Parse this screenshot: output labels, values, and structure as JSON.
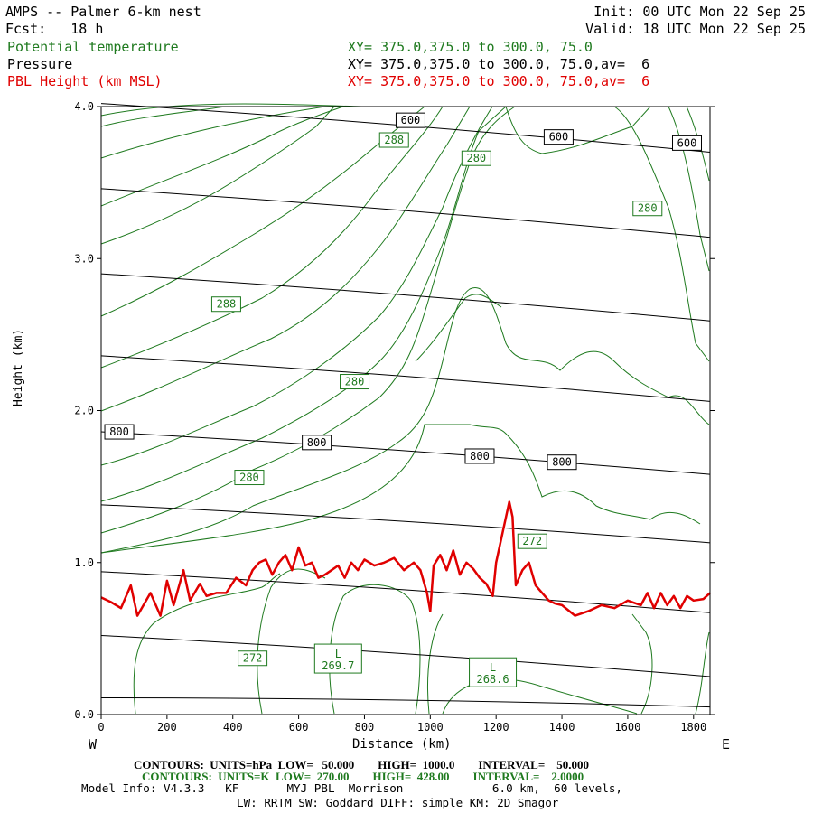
{
  "header": {
    "title": "AMPS -- Palmer 6-km nest",
    "fcst": "Fcst:   18 h",
    "init": "Init: 00 UTC Mon 22 Sep 25",
    "valid": "Valid: 18 UTC Mon 22 Sep 25",
    "layers": [
      {
        "name": "Potential temperature",
        "xy": "XY= 375.0,375.0 to 300.0, 75.0",
        "color": "#1f7a1f"
      },
      {
        "name": "Pressure",
        "xy": "XY= 375.0,375.0 to 300.0, 75.0,av=  6",
        "color": "#000000"
      },
      {
        "name": "PBL Height (km MSL)",
        "xy": "XY= 375.0,375.0 to 300.0, 75.0,av=  6",
        "color": "#e00000"
      }
    ]
  },
  "chart_data": {
    "type": "line",
    "xlabel": "Distance (km)",
    "ylabel": "Height (km)",
    "xlim": [
      0,
      1850
    ],
    "ylim": [
      0,
      4.0
    ],
    "x_ticks": [
      0,
      200,
      400,
      600,
      800,
      1000,
      1200,
      1400,
      1600,
      1800
    ],
    "y_ticks": [
      "0.0",
      "1.0",
      "2.0",
      "3.0",
      "4.0"
    ],
    "left_end_label": "W",
    "right_end_label": "E",
    "pressure_isobars_km": [
      {
        "hpa": null,
        "y": [
          0.11,
          0.05
        ]
      },
      {
        "hpa": null,
        "y": [
          0.52,
          0.25
        ]
      },
      {
        "hpa": null,
        "y": [
          0.94,
          0.67
        ]
      },
      {
        "hpa": null,
        "y": [
          1.38,
          1.13
        ]
      },
      {
        "hpa": 800,
        "y": [
          1.86,
          1.58
        ]
      },
      {
        "hpa": null,
        "y": [
          2.36,
          2.06
        ]
      },
      {
        "hpa": null,
        "y": [
          2.9,
          2.59
        ]
      },
      {
        "hpa": null,
        "y": [
          3.46,
          3.14
        ]
      },
      {
        "hpa": 600,
        "y": [
          4.02,
          3.7
        ]
      }
    ],
    "pressure_labels": [
      {
        "text": "800",
        "x": 55,
        "y": 1.86
      },
      {
        "text": "800",
        "x": 655,
        "y": 1.79
      },
      {
        "text": "800",
        "x": 1150,
        "y": 1.7
      },
      {
        "text": "800",
        "x": 1400,
        "y": 1.66
      },
      {
        "text": "600",
        "x": 940,
        "y": 3.91
      },
      {
        "text": "600",
        "x": 1390,
        "y": 3.8
      },
      {
        "text": "600",
        "x": 1780,
        "y": 3.76
      }
    ],
    "theta_labels": [
      {
        "text": "288",
        "x": 890,
        "y": 3.78
      },
      {
        "text": "280",
        "x": 1140,
        "y": 3.66
      },
      {
        "text": "280",
        "x": 1660,
        "y": 3.33
      },
      {
        "text": "288",
        "x": 380,
        "y": 2.7
      },
      {
        "text": "280",
        "x": 770,
        "y": 2.19
      },
      {
        "text": "280",
        "x": 450,
        "y": 1.56
      },
      {
        "text": "272",
        "x": 1310,
        "y": 1.14
      },
      {
        "text": "272",
        "x": 460,
        "y": 0.37
      }
    ],
    "lows": [
      {
        "text": "L",
        "value": "269.7",
        "x": 720,
        "y": 0.38
      },
      {
        "text": "L",
        "value": "268.6",
        "x": 1190,
        "y": 0.29
      }
    ],
    "pbl_height_km": {
      "x": [
        0,
        30,
        60,
        90,
        110,
        150,
        180,
        200,
        220,
        250,
        270,
        300,
        320,
        350,
        380,
        410,
        440,
        460,
        480,
        500,
        520,
        540,
        560,
        580,
        600,
        620,
        640,
        660,
        680,
        700,
        720,
        740,
        760,
        780,
        800,
        830,
        860,
        890,
        920,
        950,
        970,
        990,
        1000,
        1010,
        1030,
        1050,
        1070,
        1090,
        1110,
        1130,
        1150,
        1170,
        1190,
        1200,
        1220,
        1240,
        1250,
        1260,
        1280,
        1300,
        1320,
        1340,
        1360,
        1380,
        1400,
        1440,
        1480,
        1520,
        1560,
        1600,
        1640,
        1660,
        1680,
        1700,
        1720,
        1740,
        1760,
        1780,
        1800,
        1830,
        1850
      ],
      "y": [
        0.77,
        0.74,
        0.7,
        0.85,
        0.65,
        0.8,
        0.65,
        0.88,
        0.72,
        0.95,
        0.75,
        0.86,
        0.78,
        0.8,
        0.8,
        0.9,
        0.85,
        0.95,
        1.0,
        1.02,
        0.92,
        1.0,
        1.05,
        0.95,
        1.1,
        0.98,
        1.0,
        0.9,
        0.92,
        0.95,
        0.98,
        0.9,
        1.0,
        0.95,
        1.02,
        0.98,
        1.0,
        1.03,
        0.95,
        1.0,
        0.95,
        0.8,
        0.68,
        0.98,
        1.05,
        0.95,
        1.08,
        0.92,
        1.0,
        0.96,
        0.9,
        0.86,
        0.78,
        1.0,
        1.2,
        1.4,
        1.3,
        0.85,
        0.95,
        1.0,
        0.85,
        0.8,
        0.75,
        0.73,
        0.72,
        0.65,
        0.68,
        0.72,
        0.7,
        0.75,
        0.72,
        0.8,
        0.7,
        0.8,
        0.72,
        0.78,
        0.7,
        0.78,
        0.75,
        0.76,
        0.8
      ]
    }
  },
  "footer": {
    "contours_p": "CONTOURS:  UNITS=hPa  LOW=   50.000        HIGH=  1000.0        INTERVAL=    50.000",
    "contours_t": "CONTOURS:  UNITS=K  LOW=  270.00        HIGH=  428.00        INTERVAL=    2.0000",
    "model_info": "Model Info: V4.3.3   KF       MYJ PBL  Morrison             6.0 km,  60 levels,",
    "model_info2": "LW: RRTM SW: Goddard DIFF: simple KM: 2D Smagor"
  }
}
